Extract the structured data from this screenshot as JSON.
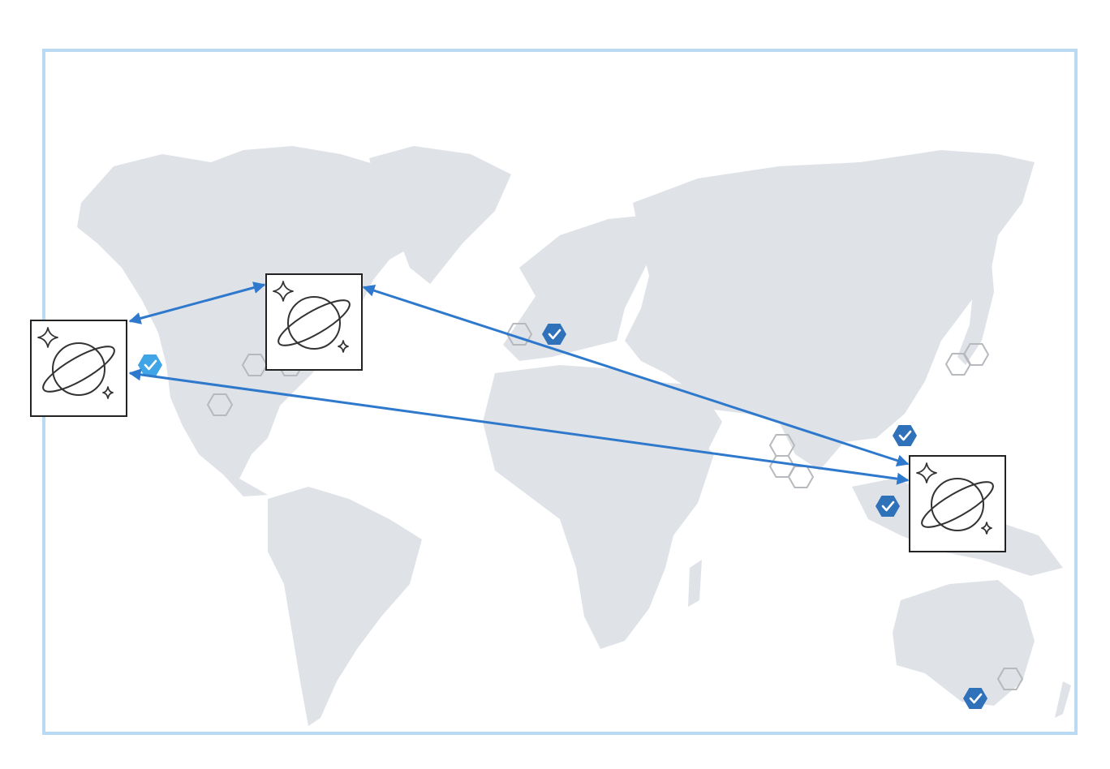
{
  "map": {
    "frame_color": "#b9daf2",
    "land_color": "#dfe2e7"
  },
  "colors": {
    "connection": "#2f79cd",
    "region_active": "#2f72ba",
    "region_highlight": "#3fa5e6",
    "region_inactive": "#b6b9bd"
  },
  "icons": {
    "replica": "planet-stars-icon",
    "region_enabled": "hexagon-check-icon",
    "region_available": "hexagon-outline-icon"
  },
  "replicas": [
    {
      "id": "west-us"
    },
    {
      "id": "east-canada"
    },
    {
      "id": "southeast-asia"
    }
  ],
  "links": [
    {
      "from": "west-us",
      "to": "east-canada",
      "bidirectional": true
    },
    {
      "from": "east-canada",
      "to": "southeast-asia",
      "bidirectional": true
    },
    {
      "from": "west-us",
      "to": "southeast-asia",
      "bidirectional": true
    }
  ],
  "regions": [
    {
      "status": "enabled-highlight"
    },
    {
      "status": "enabled"
    },
    {
      "status": "enabled"
    },
    {
      "status": "enabled"
    },
    {
      "status": "enabled"
    },
    {
      "status": "available"
    },
    {
      "status": "available"
    },
    {
      "status": "available"
    },
    {
      "status": "available"
    },
    {
      "status": "available"
    },
    {
      "status": "available"
    },
    {
      "status": "available"
    },
    {
      "status": "available"
    },
    {
      "status": "available"
    },
    {
      "status": "available"
    }
  ]
}
